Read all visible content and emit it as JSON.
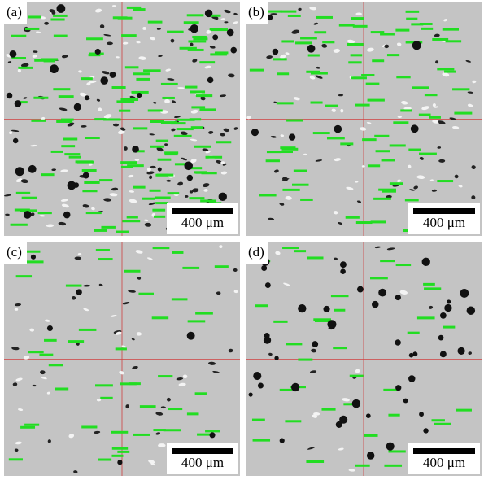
{
  "panels": [
    {
      "label": "(a)",
      "scale_bar": "400 μm"
    },
    {
      "label": "(b)",
      "scale_bar": "400 μm"
    },
    {
      "label": "(c)",
      "scale_bar": "400 μm"
    },
    {
      "label": "(d)",
      "scale_bar": "400 μm"
    }
  ]
}
